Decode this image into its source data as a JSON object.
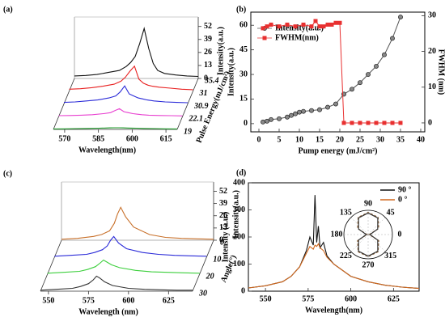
{
  "chart_data": [
    {
      "type": "waterfall",
      "label": "(a)",
      "x_label": "Wavelength(nm)",
      "z_label": "Intensity(a.u.)",
      "depth_label": "Pulse Energy(mJ/cm²)",
      "x": [
        565,
        570,
        575,
        580,
        585,
        588,
        590,
        592,
        594,
        596,
        598,
        600,
        602,
        605,
        610,
        615,
        620
      ],
      "xlim": [
        565,
        620
      ],
      "xticks": [
        570,
        585,
        600,
        615
      ],
      "zlim": [
        0,
        55
      ],
      "zticks": [
        0,
        13,
        26,
        39,
        52
      ],
      "depth_ticks": [
        19,
        22.1,
        30.9,
        31,
        35.4
      ],
      "series": [
        {
          "color": "#1f9a2a",
          "values": [
            0.5,
            0.6,
            0.8,
            1,
            1.2,
            1.4,
            1.5,
            1.6,
            1.6,
            1.5,
            1.4,
            1.3,
            1.2,
            1,
            0.8,
            0.6,
            0.5
          ]
        },
        {
          "color": "#e83fd0",
          "values": [
            1,
            1.2,
            1.5,
            2,
            3,
            4,
            6,
            8,
            5,
            4,
            3,
            2.5,
            2,
            1.5,
            1.2,
            1,
            0.8
          ]
        },
        {
          "color": "#2a2ad8",
          "values": [
            1.5,
            2,
            3,
            4,
            6,
            8,
            12,
            18,
            10,
            8,
            6,
            5,
            4,
            3,
            2,
            1.5,
            1.2
          ]
        },
        {
          "color": "#e82020",
          "values": [
            2,
            2.5,
            3.5,
            5,
            7,
            10,
            14,
            20,
            25,
            12,
            8,
            6,
            5,
            4,
            3,
            2,
            1.5
          ]
        },
        {
          "color": "#111111",
          "values": [
            2.5,
            3,
            4,
            6,
            8,
            12,
            16,
            22,
            35,
            50,
            30,
            15,
            8,
            5,
            3.5,
            2.5,
            2
          ]
        }
      ]
    },
    {
      "type": "dual",
      "label": "(b)",
      "x_label": "Pump energy (mJ/cm²)",
      "y_label": "Intensity(a.u.)",
      "y2_label": "FWHM (nm)",
      "xlim": [
        -2,
        41
      ],
      "xticks": [
        0,
        5,
        10,
        15,
        20,
        25,
        30,
        35,
        40
      ],
      "ylim": [
        -5,
        68
      ],
      "yticks": [
        0,
        15,
        30,
        45,
        60
      ],
      "y2lim": [
        -2.5,
        31
      ],
      "y2ticks": [
        0,
        10,
        20,
        30
      ],
      "series": [
        {
          "name": "Intensity(a.u.)",
          "color": "#555555",
          "marker": "circle",
          "x": [
            1,
            2,
            3,
            5,
            7,
            8,
            9,
            10,
            11,
            13,
            15,
            17,
            19,
            21,
            23,
            25,
            27,
            29,
            31,
            33,
            35
          ],
          "values": [
            1,
            1.5,
            2.5,
            3,
            4,
            5,
            6,
            7,
            7.5,
            8,
            8.5,
            10,
            12,
            18,
            21,
            25,
            30,
            35,
            42,
            52,
            65
          ]
        },
        {
          "name": "FWHM(nm)",
          "color": "#e83030",
          "marker": "square",
          "axis": "y2",
          "x": [
            1,
            2,
            3,
            5,
            7,
            9,
            11,
            13,
            14,
            15,
            16,
            17,
            18,
            19,
            20,
            21,
            23,
            25,
            27,
            29,
            31,
            33,
            35
          ],
          "values": [
            26.5,
            27,
            27.5,
            27,
            27.5,
            27,
            27.5,
            27,
            28.5,
            27,
            27,
            27.5,
            27.5,
            28,
            28,
            0,
            0,
            0,
            0,
            0,
            0,
            0,
            0
          ]
        }
      ]
    },
    {
      "type": "waterfall",
      "label": "(c)",
      "x_label": "Wavelength (nm)",
      "z_label": "Intensity(a.u.)",
      "depth_label": "Angle(°)",
      "x": [
        545,
        555,
        565,
        570,
        575,
        578,
        580,
        582,
        585,
        590,
        600,
        610,
        620,
        630,
        640
      ],
      "xlim": [
        545,
        640
      ],
      "xticks": [
        550,
        575,
        600,
        625
      ],
      "zlim": [
        0,
        55
      ],
      "zticks": [
        0,
        13,
        26,
        39,
        52
      ],
      "depth_ticks": [
        30,
        20,
        10,
        0
      ],
      "series": [
        {
          "color": "#333333",
          "values": [
            1,
            2,
            3,
            5,
            8,
            12,
            16,
            14,
            10,
            6,
            3,
            2,
            1.5,
            1,
            1
          ]
        },
        {
          "color": "#3ccf3c",
          "values": [
            1,
            2,
            3,
            5,
            8,
            12,
            15,
            13,
            10,
            7,
            4,
            2.5,
            2,
            1.5,
            1
          ]
        },
        {
          "color": "#2a2ad8",
          "values": [
            1,
            2,
            3,
            5,
            8,
            12,
            18,
            22,
            15,
            9,
            5,
            3,
            2,
            1.5,
            1
          ]
        },
        {
          "color": "#c8702a",
          "values": [
            1,
            2,
            4,
            6,
            10,
            18,
            28,
            35,
            25,
            14,
            6,
            3,
            2,
            1.5,
            1
          ]
        }
      ]
    },
    {
      "type": "line",
      "label": "(d)",
      "x_label": "Wavelength(nm)",
      "y_label": "Intensity (a.u.)",
      "x": [
        540,
        550,
        560,
        565,
        570,
        574,
        576,
        578,
        579,
        580,
        581,
        582,
        584,
        586,
        590,
        600,
        610,
        620,
        630,
        640
      ],
      "xlim": [
        540,
        640
      ],
      "xticks": [
        550,
        575,
        600,
        625
      ],
      "ylim": [
        0,
        400
      ],
      "yticks": [
        0,
        100,
        200,
        300,
        400
      ],
      "series": [
        {
          "name": "90 °",
          "color": "#111111",
          "values": [
            12,
            20,
            35,
            55,
            90,
            150,
            200,
            170,
            355,
            180,
            240,
            160,
            180,
            130,
            100,
            55,
            35,
            22,
            15,
            10
          ]
        },
        {
          "name": "0 °",
          "color": "#d2691e",
          "values": [
            12,
            20,
            35,
            55,
            90,
            140,
            165,
            155,
            170,
            165,
            175,
            160,
            150,
            125,
            100,
            55,
            35,
            22,
            15,
            10
          ]
        }
      ]
    },
    {
      "type": "polar",
      "theta": [
        0,
        30,
        60,
        90,
        120,
        150,
        180,
        210,
        240,
        270,
        300,
        330
      ],
      "rlim": [
        0,
        1.1
      ],
      "angle_ticks": [
        0,
        45,
        90,
        135,
        180,
        225,
        270,
        315
      ],
      "series": [
        {
          "color": "#8b5a2b",
          "values": [
            0.05,
            0.55,
            0.9,
            1,
            0.9,
            0.55,
            0.05,
            0.55,
            0.9,
            1,
            0.9,
            0.55
          ]
        },
        {
          "color": "#333333",
          "values": [
            0.08,
            0.5,
            0.87,
            0.98,
            0.87,
            0.5,
            0.08,
            0.5,
            0.87,
            0.98,
            0.87,
            0.5
          ]
        }
      ]
    }
  ]
}
